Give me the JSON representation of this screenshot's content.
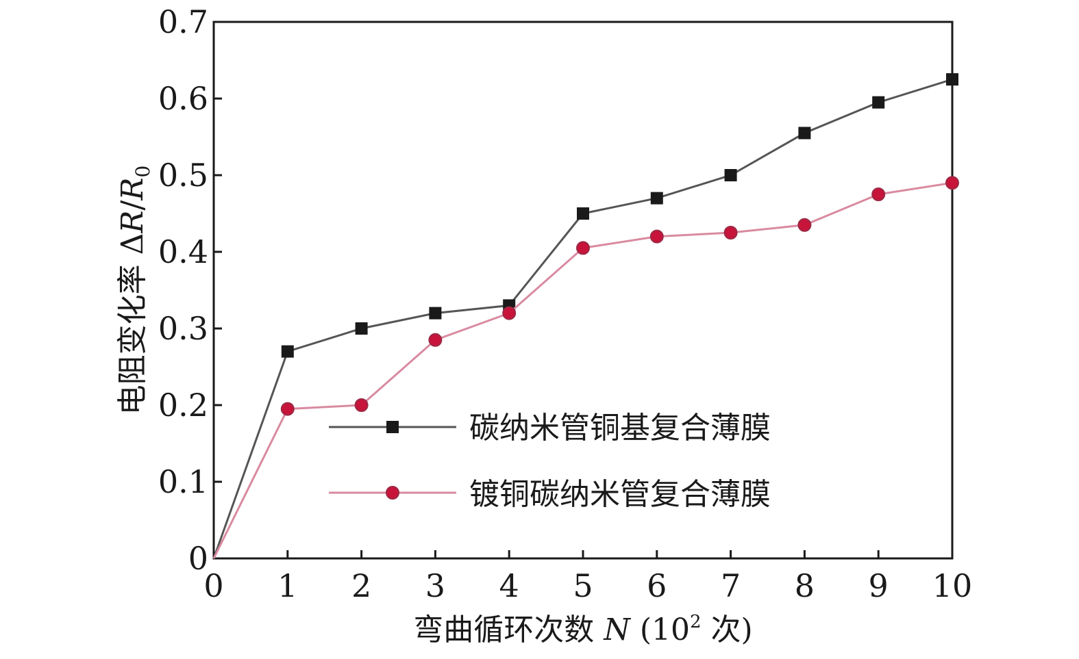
{
  "chart_data": {
    "type": "line",
    "xlabel_main": "弯曲循环次数",
    "xlabel_var": "N",
    "xlabel_unit_open": "(10",
    "xlabel_unit_sup": "2",
    "xlabel_unit_close": " 次)",
    "ylabel_main": "电阻变化率 ",
    "ylabel_delta": "Δ",
    "ylabel_var1": "R",
    "ylabel_slash": "/",
    "ylabel_var2": "R",
    "ylabel_sub": "0",
    "x_ticks": [
      "0",
      "1",
      "2",
      "3",
      "4",
      "5",
      "6",
      "7",
      "8",
      "9",
      "10"
    ],
    "y_ticks": [
      "0",
      "0.1",
      "0.2",
      "0.3",
      "0.4",
      "0.5",
      "0.6",
      "0.7"
    ],
    "xlim": [
      0,
      10
    ],
    "ylim": [
      0,
      0.7
    ],
    "grid": false,
    "legend_position": "center-right",
    "series": [
      {
        "name": "碳纳米管铜基复合薄膜",
        "marker": "square",
        "line_color": "#555555",
        "marker_color": "#1a1a1a",
        "x": [
          0,
          1,
          2,
          3,
          4,
          5,
          6,
          7,
          8,
          9,
          10
        ],
        "y": [
          0,
          0.27,
          0.3,
          0.32,
          0.33,
          0.45,
          0.47,
          0.5,
          0.555,
          0.595,
          0.625
        ]
      },
      {
        "name": "镀铜碳纳米管复合薄膜",
        "marker": "circle",
        "line_color": "#d98aa0",
        "marker_color": "#c8143a",
        "x": [
          0,
          1,
          2,
          3,
          4,
          5,
          6,
          7,
          8,
          9,
          10
        ],
        "y": [
          0,
          0.195,
          0.2,
          0.285,
          0.32,
          0.405,
          0.42,
          0.425,
          0.435,
          0.475,
          0.49
        ]
      }
    ]
  }
}
